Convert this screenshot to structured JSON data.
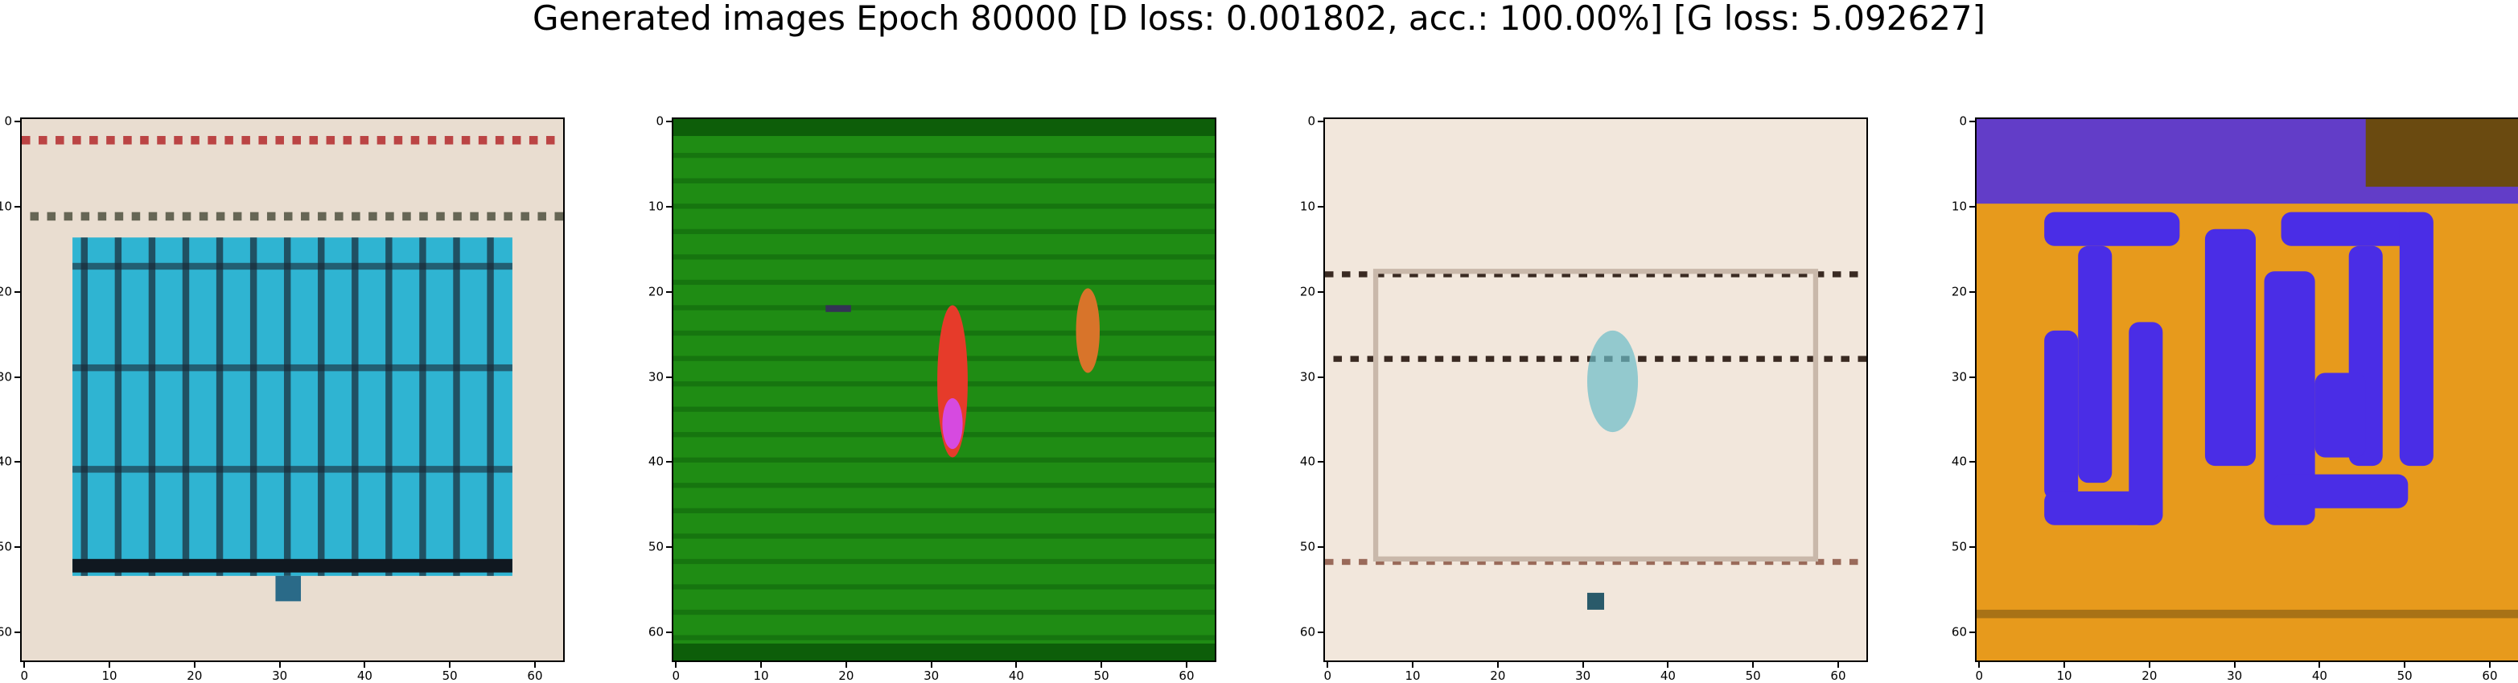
{
  "figure": {
    "title": "Generated images Epoch 80000 [D loss: 0.001802, acc.: 100.00%] [G loss: 5.092627]"
  },
  "axes": {
    "x_ticks": [
      "0",
      "10",
      "20",
      "30",
      "40",
      "50",
      "60"
    ],
    "y_ticks": [
      "0",
      "10",
      "20",
      "30",
      "40",
      "50",
      "60"
    ],
    "range": [
      0,
      64
    ]
  },
  "images": [
    {
      "name": "generated-image-1",
      "palette": {
        "bg": "#e9ddd0",
        "accent": "#2fb4d2",
        "dark": "#1a2733"
      }
    },
    {
      "name": "generated-image-2",
      "palette": {
        "bg": "#1f8c14",
        "accent": "#e63b2a",
        "dark": "#0d5e09"
      }
    },
    {
      "name": "generated-image-3",
      "palette": {
        "bg": "#f2e7dc",
        "accent": "#6bbcc8",
        "dark": "#3a2a22"
      }
    },
    {
      "name": "generated-image-4",
      "palette": {
        "bg": "#e79a1c",
        "accent": "#4a2de6",
        "dark": "#6a4a10"
      }
    }
  ]
}
